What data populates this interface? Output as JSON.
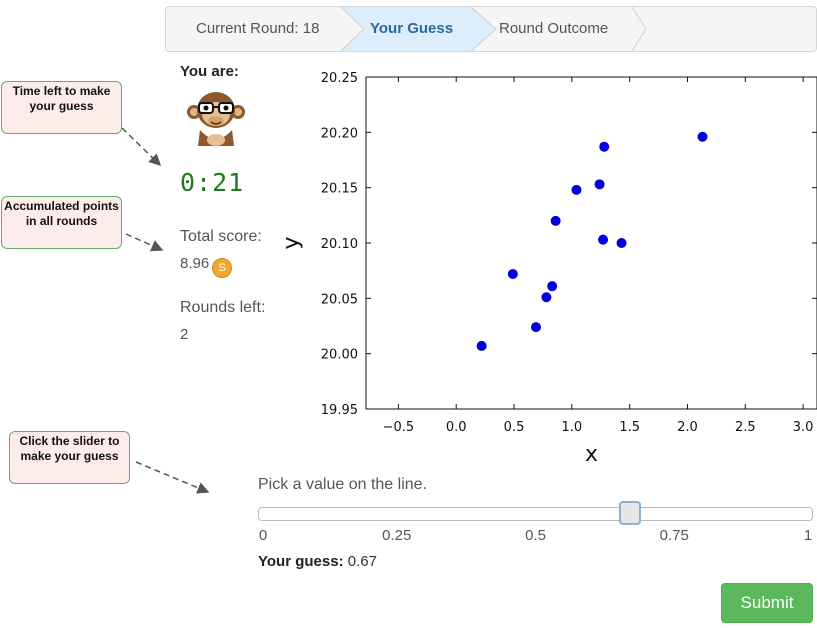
{
  "breadcrumb": {
    "items": [
      {
        "label": "Current Round: 18",
        "active": false
      },
      {
        "label": "Your Guess",
        "active": true
      },
      {
        "label": "Round Outcome",
        "active": false
      }
    ]
  },
  "player": {
    "you_are_label": "You are:",
    "avatar_icon": "monkey-with-glasses-icon",
    "timer": "0:21",
    "total_score_label": "Total score:",
    "total_score_value": "8.96",
    "coin_glyph": "S",
    "rounds_left_label": "Rounds left:",
    "rounds_left_value": "2"
  },
  "callouts": {
    "time": "Time left to make your guess",
    "points": "Accumulated points in all rounds",
    "slider": "Click the slider to make your guess"
  },
  "chart_data": {
    "type": "scatter",
    "title": "",
    "xlabel": "x",
    "ylabel": "y",
    "xlim": [
      -0.78,
      3.12
    ],
    "ylim": [
      19.95,
      20.25
    ],
    "xticks": [
      "−0.5",
      "0.0",
      "0.5",
      "1.0",
      "1.5",
      "2.0",
      "2.5",
      "3.0"
    ],
    "xtick_values": [
      -0.5,
      0.0,
      0.5,
      1.0,
      1.5,
      2.0,
      2.5,
      3.0
    ],
    "yticks": [
      "19.95",
      "20.00",
      "20.05",
      "20.10",
      "20.15",
      "20.20",
      "20.25"
    ],
    "ytick_values": [
      19.95,
      20.0,
      20.05,
      20.1,
      20.15,
      20.2,
      20.25
    ],
    "point_color": "#0000dd",
    "points": [
      {
        "x": 0.22,
        "y": 20.007
      },
      {
        "x": 0.49,
        "y": 20.072
      },
      {
        "x": 0.69,
        "y": 20.024
      },
      {
        "x": 0.78,
        "y": 20.051
      },
      {
        "x": 0.83,
        "y": 20.061
      },
      {
        "x": 0.86,
        "y": 20.12
      },
      {
        "x": 1.04,
        "y": 20.148
      },
      {
        "x": 1.24,
        "y": 20.153
      },
      {
        "x": 1.27,
        "y": 20.103
      },
      {
        "x": 1.28,
        "y": 20.187
      },
      {
        "x": 1.43,
        "y": 20.1
      },
      {
        "x": 2.13,
        "y": 20.196
      }
    ]
  },
  "slider": {
    "prompt": "Pick a value on the line.",
    "min": 0,
    "max": 1,
    "value": 0.67,
    "tick_labels": [
      "0",
      "0.25",
      "0.5",
      "0.75",
      "1"
    ],
    "tick_values": [
      0,
      0.25,
      0.5,
      0.75,
      1
    ],
    "guess_label": "Your guess:",
    "guess_value": "0.67"
  },
  "submit_label": "Submit"
}
